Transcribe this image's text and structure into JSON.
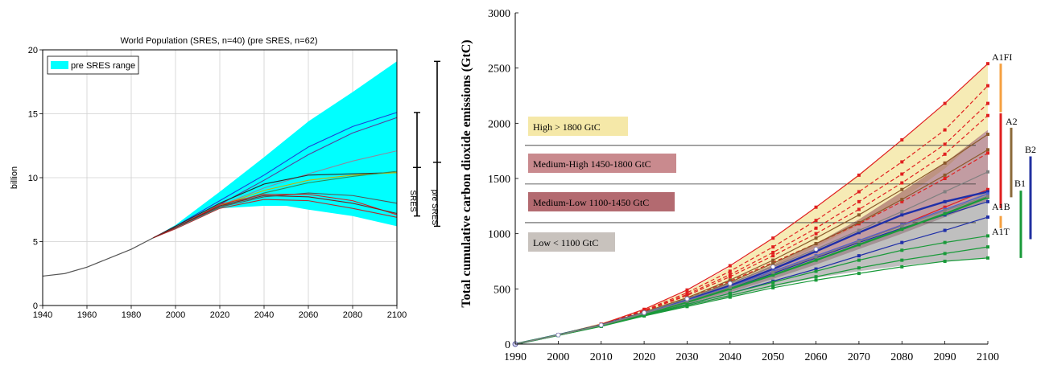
{
  "chart_data": [
    {
      "type": "line",
      "title": "World Population (SRES, n=40) (pre SRES, n=62)",
      "ylabel": "billion",
      "xlabel": "",
      "xlim": [
        1940,
        2100
      ],
      "ylim": [
        0,
        20
      ],
      "x_ticks": [
        "1940",
        "1960",
        "1980",
        "2000",
        "2020",
        "2040",
        "2060",
        "2080",
        "2100"
      ],
      "y_ticks": [
        "0",
        "5",
        "10",
        "15",
        "20"
      ],
      "grid": true,
      "legend": {
        "position": "top-left",
        "entries": [
          {
            "label": "pre SRES range",
            "color": "#00ffff"
          }
        ]
      },
      "range_band": {
        "name": "pre SRES range",
        "x": [
          1990,
          2000,
          2020,
          2040,
          2050,
          2060,
          2080,
          2100
        ],
        "upper": [
          5.3,
          6.3,
          8.9,
          11.6,
          13.0,
          14.4,
          16.7,
          19.1
        ],
        "lower": [
          5.3,
          6.0,
          7.6,
          7.8,
          7.8,
          7.5,
          7.0,
          6.2
        ]
      },
      "historical": {
        "x": [
          1940,
          1950,
          1960,
          1970,
          1980,
          1990
        ],
        "values": [
          2.3,
          2.5,
          3.0,
          3.7,
          4.4,
          5.3
        ]
      },
      "series": [
        {
          "color": "#1e3fd6",
          "x": [
            1990,
            2000,
            2020,
            2040,
            2060,
            2080,
            2100
          ],
          "values": [
            5.3,
            6.2,
            8.2,
            10.2,
            12.4,
            14.0,
            15.1
          ]
        },
        {
          "color": "#5a3d9a",
          "x": [
            1990,
            2000,
            2020,
            2040,
            2060,
            2080,
            2100
          ],
          "values": [
            5.3,
            6.1,
            7.9,
            9.8,
            11.8,
            13.5,
            14.7
          ]
        },
        {
          "color": "#8a8aa0",
          "x": [
            1990,
            2000,
            2020,
            2040,
            2060,
            2080,
            2100
          ],
          "values": [
            5.3,
            6.1,
            7.8,
            9.2,
            10.3,
            11.3,
            12.1
          ]
        },
        {
          "color": "#2a2a2a",
          "x": [
            1990,
            2000,
            2020,
            2040,
            2060,
            2080,
            2100
          ],
          "values": [
            5.3,
            6.2,
            8.0,
            9.5,
            10.2,
            10.3,
            10.4
          ]
        },
        {
          "color": "#c8b400",
          "x": [
            1990,
            2000,
            2020,
            2040,
            2060,
            2080,
            2100
          ],
          "values": [
            5.3,
            6.1,
            7.8,
            9.0,
            9.8,
            10.2,
            10.4
          ]
        },
        {
          "color": "#2e8b57",
          "x": [
            1990,
            2000,
            2020,
            2040,
            2060,
            2080,
            2100
          ],
          "values": [
            5.3,
            6.1,
            7.7,
            8.8,
            9.6,
            10.1,
            10.5
          ]
        },
        {
          "color": "#555555",
          "x": [
            1990,
            2000,
            2020,
            2040,
            2060,
            2080,
            2100
          ],
          "values": [
            5.3,
            6.1,
            7.7,
            8.5,
            8.8,
            8.6,
            8.0
          ]
        },
        {
          "color": "#d42020",
          "x": [
            1990,
            2000,
            2020,
            2040,
            2060,
            2080,
            2100
          ],
          "values": [
            5.3,
            6.1,
            7.9,
            8.7,
            8.7,
            8.2,
            7.1
          ]
        },
        {
          "color": "#b03030",
          "x": [
            1990,
            2000,
            2020,
            2040,
            2060,
            2080,
            2100
          ],
          "values": [
            5.3,
            6.0,
            7.6,
            8.3,
            8.2,
            7.6,
            6.9
          ]
        },
        {
          "color": "#7a1f1f",
          "x": [
            1990,
            2000,
            2020,
            2040,
            2060,
            2080,
            2100
          ],
          "values": [
            5.3,
            6.1,
            7.8,
            8.6,
            8.5,
            8.0,
            7.2
          ]
        }
      ],
      "range_bars": [
        {
          "label": "SRES",
          "low": 7.0,
          "high": 15.1
        },
        {
          "label": "pre SRES",
          "low": 6.2,
          "high": 19.1
        }
      ]
    },
    {
      "type": "line",
      "title": "",
      "ylabel": "Total cumulative carbon dioxide emissions (GtC)",
      "xlabel": "",
      "xlim": [
        1990,
        2100
      ],
      "ylim": [
        0,
        3000
      ],
      "x_ticks": [
        "1990",
        "2000",
        "2010",
        "2020",
        "2030",
        "2040",
        "2050",
        "2060",
        "2070",
        "2080",
        "2090",
        "2100"
      ],
      "y_ticks": [
        "0",
        "500",
        "1000",
        "1500",
        "2000",
        "2500",
        "3000"
      ],
      "grid": false,
      "thresholds": [
        1800,
        1450,
        1100
      ],
      "category_labels": [
        {
          "label": "High > 1800 GtC",
          "color": "#f5e8a8"
        },
        {
          "label": "Medium-High 1450-1800 GtC",
          "color": "#c98a8e"
        },
        {
          "label": "Medium-Low 1100-1450 GtC",
          "color": "#b36a70"
        },
        {
          "label": "Low < 1100 GtC",
          "color": "#c8c2bd"
        }
      ],
      "bands": [
        {
          "color": "#f5e8a8",
          "x": [
            1990,
            2000,
            2010,
            2020,
            2030,
            2040,
            2050,
            2060,
            2070,
            2080,
            2090,
            2100
          ],
          "upper": [
            0,
            90,
            190,
            315,
            480,
            700,
            960,
            1240,
            1540,
            1850,
            2180,
            2540
          ],
          "lower": [
            0,
            85,
            175,
            285,
            400,
            540,
            700,
            880,
            1080,
            1310,
            1590,
            1940
          ]
        },
        {
          "color": "#8f4a55",
          "x": [
            1990,
            2000,
            2010,
            2020,
            2030,
            2040,
            2050,
            2060,
            2070,
            2080,
            2090,
            2100
          ],
          "upper": [
            0,
            85,
            180,
            290,
            410,
            550,
            720,
            910,
            1130,
            1380,
            1640,
            1940
          ],
          "lower": [
            0,
            80,
            165,
            265,
            365,
            470,
            590,
            720,
            860,
            1000,
            1150,
            1300
          ]
        },
        {
          "color": "#8a8a8a",
          "x": [
            1990,
            2000,
            2010,
            2020,
            2030,
            2040,
            2050,
            2060,
            2070,
            2080,
            2090,
            2100
          ],
          "upper": [
            0,
            82,
            170,
            270,
            375,
            490,
            620,
            760,
            910,
            1060,
            1210,
            1380
          ],
          "lower": [
            0,
            78,
            160,
            255,
            340,
            430,
            520,
            600,
            660,
            710,
            750,
            780
          ]
        }
      ],
      "series": [
        {
          "name": "A1FI",
          "color": "#e02020",
          "x": [
            1990,
            2000,
            2010,
            2020,
            2030,
            2040,
            2050,
            2060,
            2070,
            2080,
            2090,
            2100
          ],
          "values": [
            0,
            85,
            180,
            315,
            490,
            710,
            960,
            1240,
            1530,
            1850,
            2180,
            2540
          ]
        },
        {
          "color": "#e02020",
          "x": [
            1990,
            2000,
            2010,
            2020,
            2030,
            2040,
            2050,
            2060,
            2070,
            2080,
            2090,
            2100
          ],
          "values": [
            0,
            85,
            180,
            305,
            465,
            660,
            880,
            1120,
            1380,
            1650,
            1940,
            2340
          ]
        },
        {
          "color": "#e02020",
          "x": [
            1990,
            2000,
            2010,
            2020,
            2030,
            2040,
            2050,
            2060,
            2070,
            2080,
            2090,
            2100
          ],
          "values": [
            0,
            85,
            178,
            300,
            450,
            630,
            830,
            1050,
            1290,
            1540,
            1810,
            2180
          ]
        },
        {
          "color": "#e02020",
          "x": [
            1990,
            2000,
            2010,
            2020,
            2030,
            2040,
            2050,
            2060,
            2070,
            2080,
            2090,
            2100
          ],
          "values": [
            0,
            84,
            176,
            296,
            440,
            610,
            800,
            1000,
            1220,
            1460,
            1720,
            2070
          ]
        },
        {
          "color": "#e02020",
          "x": [
            1990,
            2000,
            2010,
            2020,
            2030,
            2040,
            2050,
            2060,
            2070,
            2080,
            2090,
            2100
          ],
          "values": [
            0,
            84,
            175,
            290,
            420,
            570,
            740,
            910,
            1090,
            1290,
            1500,
            1730
          ]
        },
        {
          "color": "#e02020",
          "x": [
            1990,
            2000,
            2010,
            2020,
            2030,
            2040,
            2050,
            2060,
            2070,
            2080,
            2090,
            2100
          ],
          "values": [
            0,
            83,
            172,
            280,
            395,
            520,
            650,
            790,
            930,
            1080,
            1240,
            1400
          ]
        },
        {
          "name": "A2",
          "color": "#8b5a2b",
          "x": [
            1990,
            2000,
            2010,
            2020,
            2030,
            2040,
            2050,
            2060,
            2070,
            2080,
            2090,
            2100
          ],
          "values": [
            0,
            84,
            175,
            290,
            420,
            580,
            760,
            960,
            1170,
            1400,
            1640,
            1900
          ]
        },
        {
          "color": "#8b5a2b",
          "x": [
            1990,
            2000,
            2010,
            2020,
            2030,
            2040,
            2050,
            2060,
            2070,
            2080,
            2090,
            2100
          ],
          "values": [
            0,
            84,
            174,
            285,
            410,
            560,
            730,
            910,
            1100,
            1310,
            1530,
            1760
          ]
        },
        {
          "name": "B2",
          "color": "#1f2fa8",
          "x": [
            1990,
            2000,
            2010,
            2020,
            2030,
            2040,
            2050,
            2060,
            2070,
            2080,
            2090,
            2100
          ],
          "values": [
            0,
            83,
            172,
            282,
            400,
            530,
            680,
            840,
            1010,
            1170,
            1290,
            1380
          ]
        },
        {
          "color": "#1f2fa8",
          "x": [
            1990,
            2000,
            2010,
            2020,
            2030,
            2040,
            2050,
            2060,
            2070,
            2080,
            2090,
            2100
          ],
          "values": [
            0,
            82,
            170,
            275,
            385,
            505,
            640,
            780,
            920,
            1050,
            1170,
            1290
          ]
        },
        {
          "color": "#1f2fa8",
          "x": [
            1990,
            2000,
            2010,
            2020,
            2030,
            2040,
            2050,
            2060,
            2070,
            2080,
            2090,
            2100
          ],
          "values": [
            0,
            80,
            165,
            262,
            360,
            460,
            570,
            680,
            800,
            920,
            1030,
            1150
          ]
        },
        {
          "color": "#5060d0",
          "x": [
            1990,
            2000,
            2010,
            2020,
            2030,
            2040,
            2050,
            2060,
            2070,
            2080,
            2090,
            2100
          ],
          "values": [
            0,
            82,
            170,
            278,
            395,
            520,
            660,
            800,
            940,
            1080,
            1220,
            1360
          ]
        },
        {
          "name": "B1",
          "color": "#1a9a3a",
          "x": [
            1990,
            2000,
            2010,
            2020,
            2030,
            2040,
            2050,
            2060,
            2070,
            2080,
            2090,
            2100
          ],
          "values": [
            0,
            82,
            170,
            272,
            380,
            500,
            625,
            760,
            900,
            1040,
            1180,
            1330
          ]
        },
        {
          "color": "#1a9a3a",
          "x": [
            1990,
            2000,
            2010,
            2020,
            2030,
            2040,
            2050,
            2060,
            2070,
            2080,
            2090,
            2100
          ],
          "values": [
            0,
            80,
            166,
            265,
            360,
            460,
            560,
            660,
            760,
            850,
            920,
            980
          ]
        },
        {
          "color": "#1a9a3a",
          "x": [
            1990,
            2000,
            2010,
            2020,
            2030,
            2040,
            2050,
            2060,
            2070,
            2080,
            2090,
            2100
          ],
          "values": [
            0,
            79,
            163,
            258,
            350,
            440,
            530,
            610,
            690,
            760,
            820,
            880
          ]
        },
        {
          "color": "#1a9a3a",
          "x": [
            1990,
            2000,
            2010,
            2020,
            2030,
            2040,
            2050,
            2060,
            2070,
            2080,
            2090,
            2100
          ],
          "values": [
            0,
            78,
            160,
            255,
            340,
            425,
            510,
            580,
            640,
            700,
            750,
            780
          ]
        },
        {
          "color": "#808080",
          "x": [
            1990,
            2000,
            2010,
            2020,
            2030,
            2040,
            2050,
            2060,
            2070,
            2080,
            2090,
            2100
          ],
          "values": [
            0,
            83,
            172,
            285,
            410,
            550,
            700,
            860,
            1030,
            1200,
            1380,
            1560
          ]
        },
        {
          "color": "#808080",
          "x": [
            1990,
            2000,
            2010,
            2020,
            2030,
            2040,
            2050,
            2060,
            2070,
            2080,
            2090,
            2100
          ],
          "values": [
            0,
            82,
            170,
            276,
            390,
            515,
            650,
            790,
            930,
            1070,
            1210,
            1340
          ]
        }
      ],
      "range_bars": [
        {
          "label": "A1FI",
          "color": "#f5a040",
          "low": 2100,
          "high": 2540
        },
        {
          "label": "A2",
          "color": "#8b6a3a",
          "low": 1330,
          "high": 1960
        },
        {
          "label": "B2",
          "color": "#2030a0",
          "low": 950,
          "high": 1700
        },
        {
          "label": "A1B",
          "color": "#e02020",
          "low": 1230,
          "high": 2090
        },
        {
          "label": "B1",
          "color": "#1a9a3a",
          "low": 780,
          "high": 1390
        },
        {
          "label": "A1T",
          "color": "#f5a040",
          "low": 1050,
          "high": 1160
        }
      ],
      "series_labels": [
        "A1FI",
        "A2",
        "B2",
        "A1B",
        "B1",
        "A1T"
      ]
    }
  ]
}
